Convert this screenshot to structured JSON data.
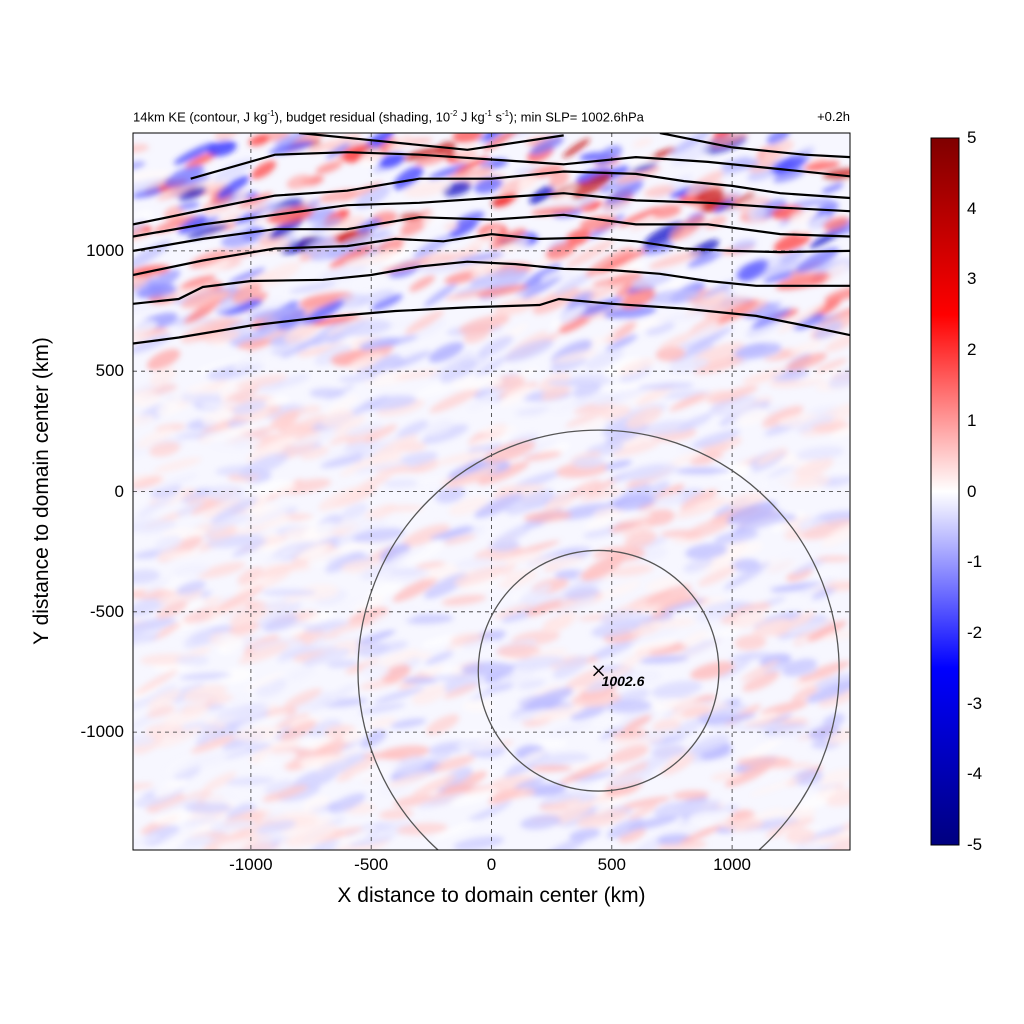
{
  "chart_data": {
    "type": "heatmap",
    "title_left_parts": {
      "a": "14km KE (contour, J kg",
      "a_sup": "-1",
      "b": "), budget residual (shading, 10",
      "b_sup": "-2",
      "c": " J kg",
      "c_sup": "-1",
      "d": " s",
      "d_sup": "-1",
      "e": "); min SLP= 1002.6hPa"
    },
    "title_right": "+0.2h",
    "xlabel": "X distance to domain center (km)",
    "ylabel": "Y distance to domain center (km)",
    "xlim": [
      -1490,
      1490
    ],
    "ylim": [
      -1490,
      1490
    ],
    "x_ticks": [
      {
        "value": -1000,
        "label": "-1000"
      },
      {
        "value": -500,
        "label": "-500"
      },
      {
        "value": 0,
        "label": "0"
      },
      {
        "value": 500,
        "label": "500"
      },
      {
        "value": 1000,
        "label": "1000"
      }
    ],
    "y_ticks": [
      {
        "value": 1000,
        "label": "1000"
      },
      {
        "value": 500,
        "label": "500"
      },
      {
        "value": 0,
        "label": "0"
      },
      {
        "value": -500,
        "label": "-500"
      },
      {
        "value": -1000,
        "label": "-1000"
      }
    ],
    "grid": true,
    "grid_style": "dashed",
    "colorbar": {
      "min": -5,
      "max": 5,
      "ticks": [
        {
          "value": 5,
          "label": "5"
        },
        {
          "value": 4,
          "label": "4"
        },
        {
          "value": 3,
          "label": "3"
        },
        {
          "value": 2,
          "label": "2"
        },
        {
          "value": 1,
          "label": "1"
        },
        {
          "value": 0,
          "label": "0"
        },
        {
          "value": -1,
          "label": "-1"
        },
        {
          "value": -2,
          "label": "-2"
        },
        {
          "value": -3,
          "label": "-3"
        },
        {
          "value": -4,
          "label": "-4"
        },
        {
          "value": -5,
          "label": "-5"
        }
      ],
      "colors": [
        "#00007f",
        "#0000ff",
        "#ffffff",
        "#ff0000",
        "#7f0000"
      ],
      "placement": "right"
    },
    "storm_center": {
      "x": 445,
      "y": -745,
      "label": "1002.6"
    },
    "circles_radius_km": [
      500,
      1000
    ],
    "ke_contours": [
      [
        [
          -1490,
          615
        ],
        [
          -1300,
          640
        ],
        [
          -1000,
          690
        ],
        [
          -700,
          725
        ],
        [
          -400,
          750
        ],
        [
          -100,
          765
        ],
        [
          200,
          775
        ],
        [
          280,
          800
        ],
        [
          500,
          780
        ],
        [
          800,
          760
        ],
        [
          1100,
          730
        ],
        [
          1300,
          690
        ],
        [
          1490,
          650
        ]
      ],
      [
        [
          -1490,
          780
        ],
        [
          -1300,
          800
        ],
        [
          -1200,
          850
        ],
        [
          -1000,
          875
        ],
        [
          -700,
          880
        ],
        [
          -500,
          900
        ],
        [
          -300,
          935
        ],
        [
          -100,
          955
        ],
        [
          100,
          945
        ],
        [
          300,
          925
        ],
        [
          500,
          920
        ],
        [
          700,
          905
        ],
        [
          900,
          875
        ],
        [
          1100,
          855
        ],
        [
          1490,
          855
        ]
      ],
      [
        [
          -1490,
          900
        ],
        [
          -1200,
          960
        ],
        [
          -900,
          1010
        ],
        [
          -600,
          1020
        ],
        [
          -400,
          1050
        ],
        [
          -200,
          1040
        ],
        [
          0,
          1070
        ],
        [
          200,
          1050
        ],
        [
          400,
          1055
        ],
        [
          600,
          1040
        ],
        [
          800,
          1010
        ],
        [
          1000,
          1000
        ],
        [
          1200,
          995
        ],
        [
          1490,
          1000
        ]
      ],
      [
        [
          -1490,
          1000
        ],
        [
          -1200,
          1050
        ],
        [
          -900,
          1090
        ],
        [
          -600,
          1090
        ],
        [
          -300,
          1140
        ],
        [
          0,
          1130
        ],
        [
          300,
          1150
        ],
        [
          600,
          1110
        ],
        [
          900,
          1110
        ],
        [
          1200,
          1070
        ],
        [
          1490,
          1060
        ]
      ],
      [
        [
          -1490,
          1060
        ],
        [
          -1200,
          1110
        ],
        [
          -900,
          1150
        ],
        [
          -600,
          1190
        ],
        [
          -300,
          1200
        ],
        [
          0,
          1220
        ],
        [
          300,
          1240
        ],
        [
          600,
          1210
        ],
        [
          900,
          1200
        ],
        [
          1200,
          1180
        ],
        [
          1490,
          1165
        ]
      ],
      [
        [
          -1490,
          1110
        ],
        [
          -1200,
          1170
        ],
        [
          -900,
          1230
        ],
        [
          -600,
          1250
        ],
        [
          -300,
          1300
        ],
        [
          0,
          1300
        ],
        [
          300,
          1330
        ],
        [
          600,
          1320
        ],
        [
          800,
          1290
        ],
        [
          1000,
          1270
        ],
        [
          1200,
          1240
        ],
        [
          1490,
          1220
        ]
      ],
      [
        [
          -1250,
          1300
        ],
        [
          -900,
          1400
        ],
        [
          -600,
          1410
        ],
        [
          -300,
          1400
        ],
        [
          0,
          1380
        ],
        [
          300,
          1360
        ],
        [
          600,
          1390
        ],
        [
          900,
          1370
        ],
        [
          1200,
          1340
        ],
        [
          1490,
          1310
        ]
      ],
      [
        [
          -800,
          1490
        ],
        [
          -500,
          1460
        ],
        [
          -100,
          1420
        ],
        [
          300,
          1480
        ]
      ],
      [
        [
          700,
          1490
        ],
        [
          1000,
          1430
        ],
        [
          1300,
          1400
        ],
        [
          1490,
          1390
        ]
      ]
    ]
  }
}
